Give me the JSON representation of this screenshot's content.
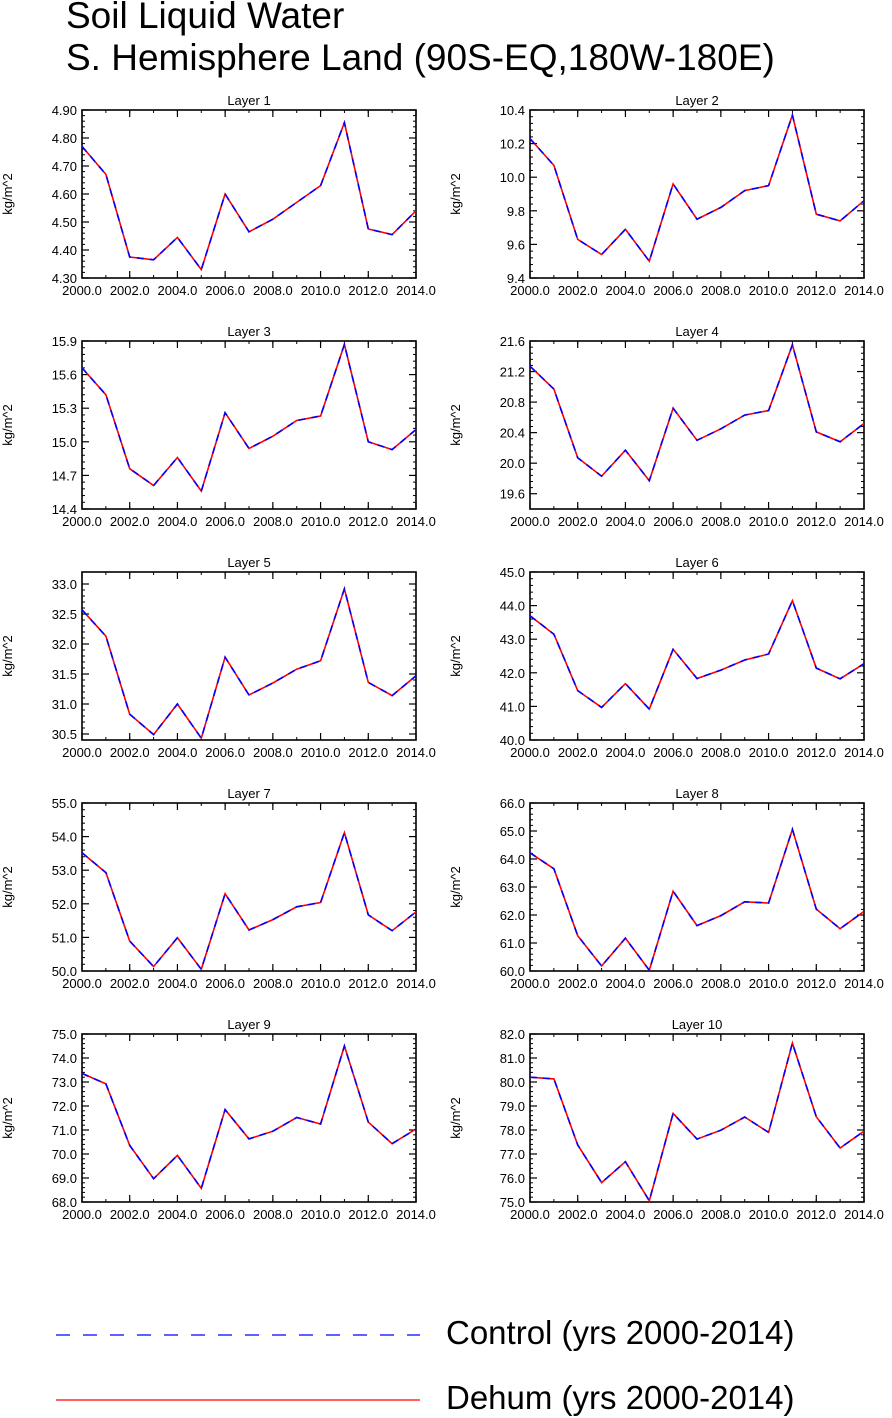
{
  "title_line1": "Soil Liquid Water",
  "title_line2": "S. Hemisphere Land (90S-EQ,180W-180E)",
  "legend": {
    "control_label": "Control (yrs 2000-2014)",
    "dehum_label": "Dehum (yrs 2000-2014)",
    "control_color": "#0000ff",
    "dehum_color": "#ff0000"
  },
  "chart_data": [
    {
      "type": "line",
      "title": "Layer 1",
      "ylabel": "kg/m^2",
      "xlim": [
        2000,
        2014
      ],
      "ylim": [
        4.3,
        4.9
      ],
      "yticks": [
        "4.30",
        "4.40",
        "4.50",
        "4.60",
        "4.70",
        "4.80",
        "4.90"
      ],
      "xticks": [
        "2000.0",
        "2002.0",
        "2004.0",
        "2006.0",
        "2008.0",
        "2010.0",
        "2012.0",
        "2014.0"
      ],
      "x": [
        2000,
        2001,
        2002,
        2003,
        2004,
        2005,
        2006,
        2007,
        2008,
        2009,
        2010,
        2011,
        2012,
        2013,
        2014
      ],
      "series": [
        {
          "name": "Control (yrs 2000-2014)",
          "values": [
            4.77,
            4.67,
            4.375,
            4.365,
            4.445,
            4.33,
            4.6,
            4.465,
            4.51,
            4.57,
            4.63,
            4.855,
            4.475,
            4.455,
            4.54
          ]
        },
        {
          "name": "Dehum (yrs 2000-2014)",
          "values": [
            4.77,
            4.67,
            4.375,
            4.365,
            4.445,
            4.33,
            4.6,
            4.465,
            4.51,
            4.57,
            4.63,
            4.855,
            4.475,
            4.455,
            4.54
          ]
        }
      ]
    },
    {
      "type": "line",
      "title": "Layer 2",
      "ylabel": "kg/m^2",
      "xlim": [
        2000,
        2014
      ],
      "ylim": [
        9.4,
        10.4
      ],
      "yticks": [
        "9.4",
        "9.6",
        "9.8",
        "10.0",
        "10.2",
        "10.4"
      ],
      "xticks": [
        "2000.0",
        "2002.0",
        "2004.0",
        "2006.0",
        "2008.0",
        "2010.0",
        "2012.0",
        "2014.0"
      ],
      "x": [
        2000,
        2001,
        2002,
        2003,
        2004,
        2005,
        2006,
        2007,
        2008,
        2009,
        2010,
        2011,
        2012,
        2013,
        2014
      ],
      "series": [
        {
          "name": "Control (yrs 2000-2014)",
          "values": [
            10.23,
            10.07,
            9.63,
            9.54,
            9.69,
            9.5,
            9.96,
            9.75,
            9.82,
            9.92,
            9.95,
            10.37,
            9.78,
            9.74,
            9.86
          ]
        },
        {
          "name": "Dehum (yrs 2000-2014)",
          "values": [
            10.23,
            10.07,
            9.63,
            9.54,
            9.69,
            9.5,
            9.96,
            9.75,
            9.82,
            9.92,
            9.95,
            10.37,
            9.78,
            9.74,
            9.86
          ]
        }
      ]
    },
    {
      "type": "line",
      "title": "Layer 3",
      "ylabel": "kg/m^2",
      "xlim": [
        2000,
        2014
      ],
      "ylim": [
        14.4,
        15.9
      ],
      "yticks": [
        "14.4",
        "14.7",
        "15.0",
        "15.3",
        "15.6",
        "15.9"
      ],
      "xticks": [
        "2000.0",
        "2002.0",
        "2004.0",
        "2006.0",
        "2008.0",
        "2010.0",
        "2012.0",
        "2014.0"
      ],
      "x": [
        2000,
        2001,
        2002,
        2003,
        2004,
        2005,
        2006,
        2007,
        2008,
        2009,
        2010,
        2011,
        2012,
        2013,
        2014
      ],
      "series": [
        {
          "name": "Control (yrs 2000-2014)",
          "values": [
            15.66,
            15.42,
            14.76,
            14.61,
            14.86,
            14.56,
            15.26,
            14.94,
            15.05,
            15.19,
            15.23,
            15.87,
            15.0,
            14.93,
            15.11
          ]
        },
        {
          "name": "Dehum (yrs 2000-2014)",
          "values": [
            15.66,
            15.42,
            14.76,
            14.61,
            14.86,
            14.56,
            15.26,
            14.94,
            15.05,
            15.19,
            15.23,
            15.87,
            15.0,
            14.93,
            15.11
          ]
        }
      ]
    },
    {
      "type": "line",
      "title": "Layer 4",
      "ylabel": "kg/m^2",
      "xlim": [
        2000,
        2014
      ],
      "ylim": [
        19.4,
        21.6
      ],
      "yticks": [
        "19.6",
        "20.0",
        "20.4",
        "20.8",
        "21.2",
        "21.6"
      ],
      "xticks": [
        "2000.0",
        "2002.0",
        "2004.0",
        "2006.0",
        "2008.0",
        "2010.0",
        "2012.0",
        "2014.0"
      ],
      "x": [
        2000,
        2001,
        2002,
        2003,
        2004,
        2005,
        2006,
        2007,
        2008,
        2009,
        2010,
        2011,
        2012,
        2013,
        2014
      ],
      "series": [
        {
          "name": "Control (yrs 2000-2014)",
          "values": [
            21.27,
            20.97,
            20.07,
            19.83,
            20.17,
            19.77,
            20.72,
            20.3,
            20.45,
            20.63,
            20.69,
            21.55,
            20.41,
            20.28,
            20.52
          ]
        },
        {
          "name": "Dehum (yrs 2000-2014)",
          "values": [
            21.27,
            20.97,
            20.07,
            19.83,
            20.17,
            19.77,
            20.72,
            20.3,
            20.45,
            20.63,
            20.69,
            21.55,
            20.41,
            20.28,
            20.52
          ]
        }
      ]
    },
    {
      "type": "line",
      "title": "Layer 5",
      "ylabel": "kg/m^2",
      "xlim": [
        2000,
        2014
      ],
      "ylim": [
        30.4,
        33.2
      ],
      "yticks": [
        "30.5",
        "31.0",
        "31.5",
        "32.0",
        "32.5",
        "33.0"
      ],
      "xticks": [
        "2000.0",
        "2002.0",
        "2004.0",
        "2006.0",
        "2008.0",
        "2010.0",
        "2012.0",
        "2014.0"
      ],
      "x": [
        2000,
        2001,
        2002,
        2003,
        2004,
        2005,
        2006,
        2007,
        2008,
        2009,
        2010,
        2011,
        2012,
        2013,
        2014
      ],
      "series": [
        {
          "name": "Control (yrs 2000-2014)",
          "values": [
            32.57,
            32.13,
            30.83,
            30.49,
            31.0,
            30.43,
            31.78,
            31.15,
            31.35,
            31.58,
            31.72,
            32.92,
            31.36,
            31.14,
            31.47
          ]
        },
        {
          "name": "Dehum (yrs 2000-2014)",
          "values": [
            32.57,
            32.13,
            30.83,
            30.49,
            31.0,
            30.43,
            31.78,
            31.15,
            31.35,
            31.58,
            31.72,
            32.92,
            31.36,
            31.14,
            31.47
          ]
        }
      ]
    },
    {
      "type": "line",
      "title": "Layer 6",
      "ylabel": "kg/m^2",
      "xlim": [
        2000,
        2014
      ],
      "ylim": [
        40.0,
        45.0
      ],
      "yticks": [
        "40.0",
        "41.0",
        "42.0",
        "43.0",
        "44.0",
        "45.0"
      ],
      "xticks": [
        "2000.0",
        "2002.0",
        "2004.0",
        "2006.0",
        "2008.0",
        "2010.0",
        "2012.0",
        "2014.0"
      ],
      "x": [
        2000,
        2001,
        2002,
        2003,
        2004,
        2005,
        2006,
        2007,
        2008,
        2009,
        2010,
        2011,
        2012,
        2013,
        2014
      ],
      "series": [
        {
          "name": "Control (yrs 2000-2014)",
          "values": [
            43.7,
            43.15,
            41.47,
            40.97,
            41.68,
            40.92,
            42.7,
            41.83,
            42.08,
            42.38,
            42.56,
            44.15,
            42.14,
            41.82,
            42.27
          ]
        },
        {
          "name": "Dehum (yrs 2000-2014)",
          "values": [
            43.7,
            43.15,
            41.47,
            40.97,
            41.68,
            40.92,
            42.7,
            41.83,
            42.08,
            42.38,
            42.56,
            44.15,
            42.14,
            41.82,
            42.27
          ]
        }
      ]
    },
    {
      "type": "line",
      "title": "Layer 7",
      "ylabel": "kg/m^2",
      "xlim": [
        2000,
        2014
      ],
      "ylim": [
        50.0,
        55.0
      ],
      "yticks": [
        "50.0",
        "51.0",
        "52.0",
        "53.0",
        "54.0",
        "55.0"
      ],
      "xticks": [
        "2000.0",
        "2002.0",
        "2004.0",
        "2006.0",
        "2008.0",
        "2010.0",
        "2012.0",
        "2014.0"
      ],
      "x": [
        2000,
        2001,
        2002,
        2003,
        2004,
        2005,
        2006,
        2007,
        2008,
        2009,
        2010,
        2011,
        2012,
        2013,
        2014
      ],
      "series": [
        {
          "name": "Control (yrs 2000-2014)",
          "values": [
            53.52,
            52.93,
            50.89,
            50.13,
            50.99,
            50.05,
            52.3,
            51.22,
            51.53,
            51.91,
            52.04,
            54.12,
            51.67,
            51.2,
            51.76
          ]
        },
        {
          "name": "Dehum (yrs 2000-2014)",
          "values": [
            53.52,
            52.93,
            50.89,
            50.13,
            50.99,
            50.05,
            52.3,
            51.22,
            51.53,
            51.91,
            52.04,
            54.12,
            51.67,
            51.2,
            51.76
          ]
        }
      ]
    },
    {
      "type": "line",
      "title": "Layer 8",
      "ylabel": "kg/m^2",
      "xlim": [
        2000,
        2014
      ],
      "ylim": [
        60.0,
        66.0
      ],
      "yticks": [
        "60.0",
        "61.0",
        "62.0",
        "63.0",
        "64.0",
        "65.0",
        "66.0"
      ],
      "xticks": [
        "2000.0",
        "2002.0",
        "2004.0",
        "2006.0",
        "2008.0",
        "2010.0",
        "2012.0",
        "2014.0"
      ],
      "x": [
        2000,
        2001,
        2002,
        2003,
        2004,
        2005,
        2006,
        2007,
        2008,
        2009,
        2010,
        2011,
        2012,
        2013,
        2014
      ],
      "series": [
        {
          "name": "Control (yrs 2000-2014)",
          "values": [
            64.22,
            63.65,
            61.26,
            60.18,
            61.17,
            60.03,
            62.85,
            61.62,
            61.98,
            62.47,
            62.43,
            65.06,
            62.21,
            61.51,
            62.13
          ]
        },
        {
          "name": "Dehum (yrs 2000-2014)",
          "values": [
            64.22,
            63.65,
            61.26,
            60.18,
            61.17,
            60.03,
            62.85,
            61.62,
            61.98,
            62.47,
            62.43,
            65.06,
            62.21,
            61.51,
            62.13
          ]
        }
      ]
    },
    {
      "type": "line",
      "title": "Layer 9",
      "ylabel": "kg/m^2",
      "xlim": [
        2000,
        2014
      ],
      "ylim": [
        68.0,
        75.0
      ],
      "yticks": [
        "68.0",
        "69.0",
        "70.0",
        "71.0",
        "72.0",
        "73.0",
        "74.0",
        "75.0"
      ],
      "xticks": [
        "2000.0",
        "2002.0",
        "2004.0",
        "2006.0",
        "2008.0",
        "2010.0",
        "2012.0",
        "2014.0"
      ],
      "x": [
        2000,
        2001,
        2002,
        2003,
        2004,
        2005,
        2006,
        2007,
        2008,
        2009,
        2010,
        2011,
        2012,
        2013,
        2014
      ],
      "series": [
        {
          "name": "Control (yrs 2000-2014)",
          "values": [
            73.36,
            72.92,
            70.36,
            68.97,
            69.94,
            68.57,
            71.85,
            70.63,
            70.95,
            71.52,
            71.25,
            74.5,
            71.33,
            70.43,
            71.04
          ]
        },
        {
          "name": "Dehum (yrs 2000-2014)",
          "values": [
            73.36,
            72.92,
            70.36,
            68.97,
            69.94,
            68.57,
            71.85,
            70.63,
            70.95,
            71.52,
            71.25,
            74.5,
            71.33,
            70.43,
            71.04
          ]
        }
      ]
    },
    {
      "type": "line",
      "title": "Layer 10",
      "ylabel": "kg/m^2",
      "xlim": [
        2000,
        2014
      ],
      "ylim": [
        75.0,
        82.0
      ],
      "yticks": [
        "75.0",
        "76.0",
        "77.0",
        "78.0",
        "79.0",
        "80.0",
        "81.0",
        "82.0"
      ],
      "xticks": [
        "2000.0",
        "2002.0",
        "2004.0",
        "2006.0",
        "2008.0",
        "2010.0",
        "2012.0",
        "2014.0"
      ],
      "x": [
        2000,
        2001,
        2002,
        2003,
        2004,
        2005,
        2006,
        2007,
        2008,
        2009,
        2010,
        2011,
        2012,
        2013,
        2014
      ],
      "series": [
        {
          "name": "Control (yrs 2000-2014)",
          "values": [
            80.2,
            80.13,
            77.38,
            75.81,
            76.68,
            75.05,
            78.69,
            77.62,
            77.99,
            78.54,
            77.9,
            81.62,
            78.55,
            77.25,
            77.95
          ]
        },
        {
          "name": "Dehum (yrs 2000-2014)",
          "values": [
            80.2,
            80.13,
            77.38,
            75.81,
            76.68,
            75.05,
            78.69,
            77.62,
            77.99,
            78.54,
            77.9,
            81.62,
            78.55,
            77.25,
            77.95
          ]
        }
      ]
    }
  ]
}
